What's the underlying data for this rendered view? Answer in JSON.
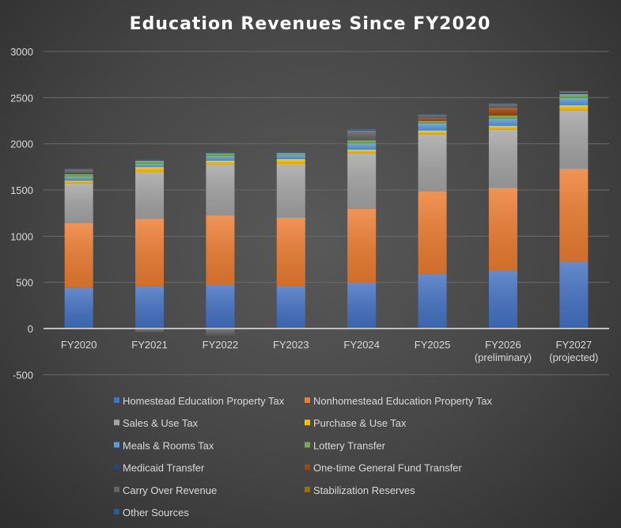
{
  "chart_data": {
    "type": "bar",
    "stacked": true,
    "title": "Education Revenues Since FY2020",
    "xlabel": "",
    "ylabel": "",
    "ylim": [
      -500,
      3000
    ],
    "yticks": [
      -500,
      0,
      500,
      1000,
      1500,
      2000,
      2500,
      3000
    ],
    "grid": true,
    "legend_position": "bottom",
    "categories": [
      [
        "FY2020"
      ],
      [
        "FY2021"
      ],
      [
        "FY2022"
      ],
      [
        "FY2023"
      ],
      [
        "FY2024"
      ],
      [
        "FY2025"
      ],
      [
        "FY2026",
        "(preliminary)"
      ],
      [
        "FY2027",
        "(projected)"
      ]
    ],
    "series": [
      {
        "name": "Homestead Education Property Tax",
        "color": "#4472c4",
        "values": [
          440,
          455,
          471,
          455,
          500,
          590,
          625,
          725
        ]
      },
      {
        "name": "Nonhomestead Education Property Tax",
        "color": "#ed7d31",
        "values": [
          700,
          735,
          754,
          745,
          795,
          893,
          900,
          1006
        ]
      },
      {
        "name": "Sales & Use Tax",
        "color": "#a5a5a5",
        "values": [
          431,
          507,
          549,
          583,
          602,
          619,
          629,
          632
        ]
      },
      {
        "name": "Purchase & Use Tax",
        "color": "#ffc000",
        "values": [
          30,
          51,
          43,
          51,
          40,
          41,
          40,
          54
        ]
      },
      {
        "name": "Meals & Rooms Tax",
        "color": "#5b9bd5",
        "values": [
          45,
          35,
          51,
          50,
          68,
          79,
          77,
          77
        ]
      },
      {
        "name": "Lottery Transfer",
        "color": "#70ad47",
        "values": [
          25,
          34,
          30,
          20,
          32,
          26,
          34,
          43
        ]
      },
      {
        "name": "Medicaid Transfer",
        "color": "#264478",
        "values": [
          10,
          10,
          8,
          10,
          0,
          0,
          0,
          10
        ]
      },
      {
        "name": "One-time General Fund Transfer",
        "color": "#9e480e",
        "values": [
          0,
          0,
          0,
          0,
          0,
          34,
          86,
          0
        ]
      },
      {
        "name": "Carry Over Revenue",
        "color": "#636363",
        "values": [
          40,
          -40,
          -77,
          -5,
          106,
          30,
          40,
          20
        ]
      },
      {
        "name": "Stabilization Reserves",
        "color": "#997300",
        "values": [
          0,
          0,
          0,
          0,
          0,
          0,
          0,
          0
        ]
      },
      {
        "name": "Other Sources",
        "color": "#255e91",
        "values": [
          10,
          5,
          5,
          5,
          15,
          8,
          8,
          5
        ]
      }
    ]
  }
}
